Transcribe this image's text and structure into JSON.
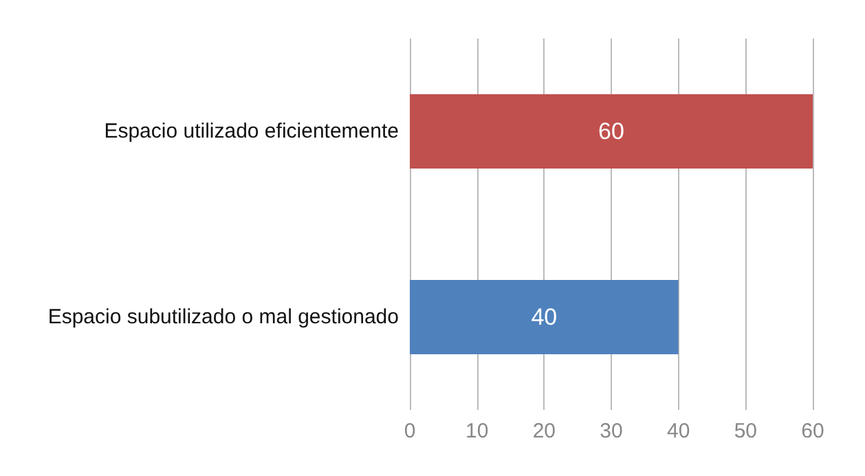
{
  "chart_data": {
    "type": "bar",
    "orientation": "horizontal",
    "categories": [
      "Espacio utilizado eficientemente",
      "Espacio subutilizado o mal gestionado"
    ],
    "values": [
      60,
      40
    ],
    "colors": [
      "#c0504d",
      "#4f81bd"
    ],
    "xlim": [
      0,
      60
    ],
    "xticks": [
      0,
      10,
      20,
      30,
      40,
      50,
      60
    ],
    "grid": "x",
    "data_labels": true
  }
}
